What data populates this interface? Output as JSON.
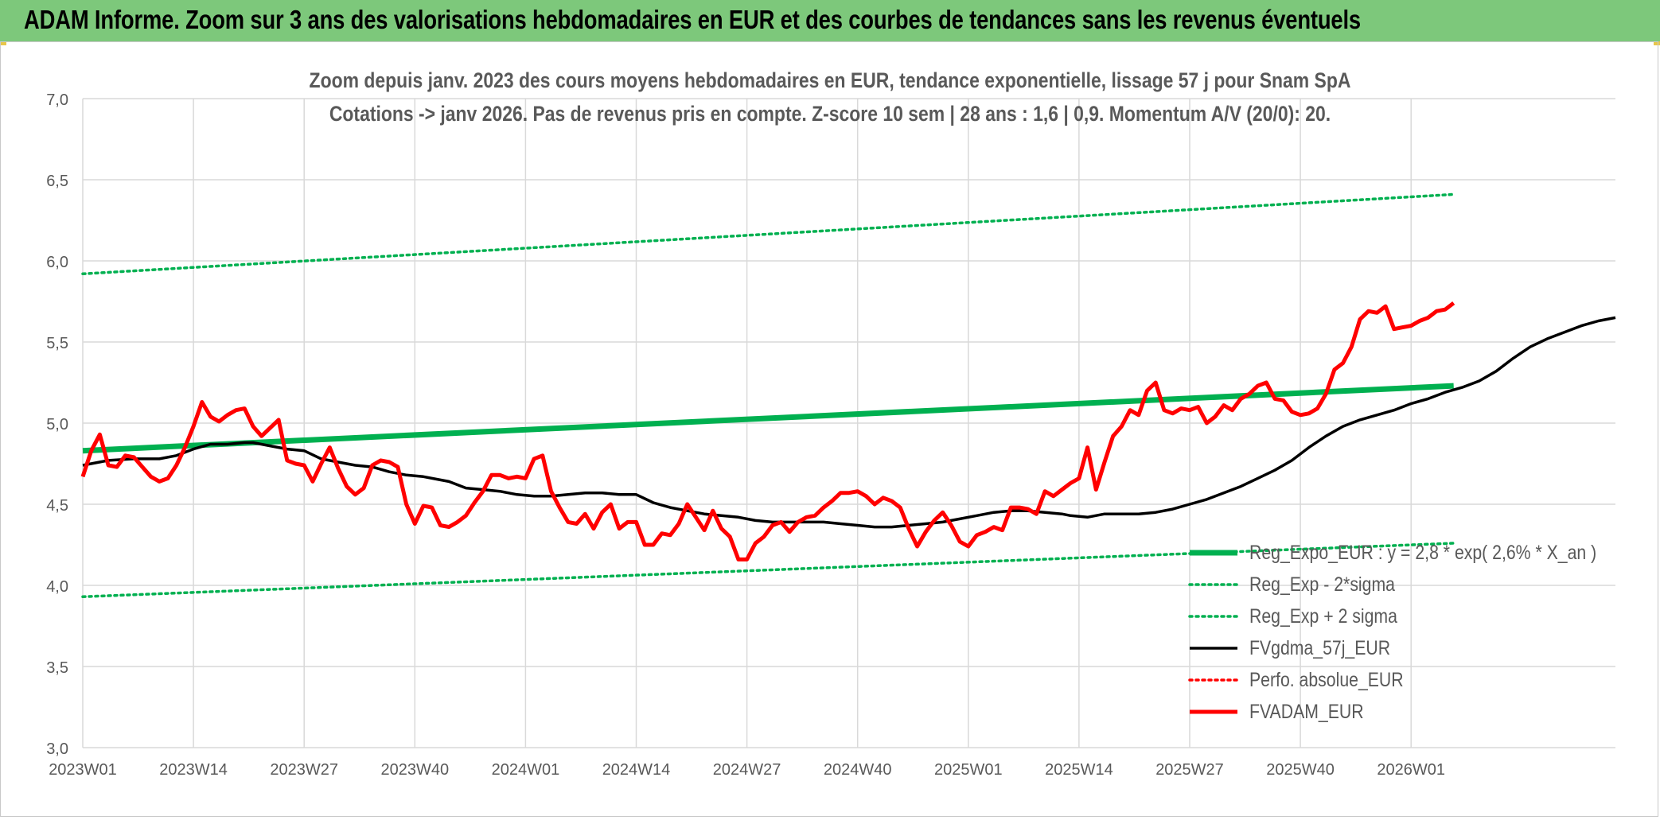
{
  "page": {
    "title": "ADAM Informe. Zoom sur 3 ans des valorisations hebdomadaires en EUR et des courbes de tendances sans les revenus éventuels"
  },
  "chart_data": {
    "type": "line",
    "title": "Zoom depuis janv. 2023 des cours moyens hebdomadaires en EUR, tendance exponentielle, lissage 57 j pour Snam SpA",
    "subtitle": "Cotations -> janv 2026. Pas de revenus pris en compte. Z-score 10 sem | 28 ans : 1,6 | 0,9. Momentum A/V (20/0): 20.",
    "ylim": [
      3.0,
      7.0
    ],
    "y_ticks": [
      "3,0",
      "3,5",
      "4,0",
      "4,5",
      "5,0",
      "5,5",
      "6,0",
      "6,5",
      "7,0"
    ],
    "x_ticks": [
      "2023W01",
      "2023W14",
      "2023W27",
      "2023W40",
      "2024W01",
      "2024W14",
      "2024W27",
      "2024W40",
      "2025W01",
      "2025W14",
      "2025W27",
      "2025W40",
      "2026W01"
    ],
    "x_week_range": [
      0,
      161
    ],
    "grid": true,
    "legend_position": "bottom-right",
    "series": [
      {
        "name": "Reg_Expo_EUR : y = 2,8 * exp( 2,6% * X_an )",
        "color": "#00b050",
        "style": "solid-thick",
        "points": [
          [
            0,
            4.83
          ],
          [
            161,
            5.23
          ]
        ]
      },
      {
        "name": "Reg_Exp - 2*sigma",
        "color": "#00b050",
        "style": "dotted",
        "points": [
          [
            0,
            3.93
          ],
          [
            161,
            4.26
          ]
        ]
      },
      {
        "name": "Reg_Exp + 2 sigma",
        "color": "#00b050",
        "style": "dotted",
        "points": [
          [
            0,
            5.92
          ],
          [
            161,
            6.41
          ]
        ]
      },
      {
        "name": "FVgdma_57j_EUR",
        "color": "#000000",
        "style": "solid",
        "points": [
          [
            0,
            4.74
          ],
          [
            3,
            4.77
          ],
          [
            6,
            4.78
          ],
          [
            9,
            4.78
          ],
          [
            11,
            4.8
          ],
          [
            13,
            4.84
          ],
          [
            15,
            4.87
          ],
          [
            17,
            4.87
          ],
          [
            19,
            4.88
          ],
          [
            20,
            4.88
          ],
          [
            22,
            4.86
          ],
          [
            24,
            4.84
          ],
          [
            26,
            4.83
          ],
          [
            28,
            4.78
          ],
          [
            30,
            4.76
          ],
          [
            32,
            4.74
          ],
          [
            34,
            4.73
          ],
          [
            36,
            4.7
          ],
          [
            38,
            4.68
          ],
          [
            40,
            4.67
          ],
          [
            42,
            4.65
          ],
          [
            43,
            4.64
          ],
          [
            45,
            4.6
          ],
          [
            47,
            4.59
          ],
          [
            49,
            4.58
          ],
          [
            51,
            4.56
          ],
          [
            53,
            4.55
          ],
          [
            55,
            4.55
          ],
          [
            57,
            4.56
          ],
          [
            59,
            4.57
          ],
          [
            61,
            4.57
          ],
          [
            63,
            4.56
          ],
          [
            65,
            4.56
          ],
          [
            67,
            4.51
          ],
          [
            69,
            4.48
          ],
          [
            71,
            4.46
          ],
          [
            73,
            4.44
          ],
          [
            75,
            4.43
          ],
          [
            77,
            4.42
          ],
          [
            79,
            4.4
          ],
          [
            81,
            4.39
          ],
          [
            83,
            4.39
          ],
          [
            85,
            4.39
          ],
          [
            87,
            4.39
          ],
          [
            89,
            4.38
          ],
          [
            91,
            4.37
          ],
          [
            93,
            4.36
          ],
          [
            95,
            4.36
          ],
          [
            97,
            4.37
          ],
          [
            99,
            4.38
          ],
          [
            101,
            4.39
          ],
          [
            103,
            4.41
          ],
          [
            105,
            4.43
          ],
          [
            107,
            4.45
          ],
          [
            109,
            4.46
          ],
          [
            111,
            4.46
          ],
          [
            113,
            4.45
          ],
          [
            115,
            4.44
          ],
          [
            116,
            4.43
          ],
          [
            118,
            4.42
          ],
          [
            120,
            4.44
          ],
          [
            122,
            4.44
          ],
          [
            124,
            4.44
          ],
          [
            126,
            4.45
          ],
          [
            128,
            4.47
          ],
          [
            130,
            4.5
          ],
          [
            132,
            4.53
          ],
          [
            134,
            4.57
          ],
          [
            136,
            4.61
          ],
          [
            138,
            4.66
          ],
          [
            140,
            4.71
          ],
          [
            142,
            4.77
          ],
          [
            144,
            4.85
          ],
          [
            146,
            4.92
          ],
          [
            148,
            4.98
          ],
          [
            150,
            5.02
          ],
          [
            152,
            5.05
          ],
          [
            154,
            5.08
          ],
          [
            156,
            5.12
          ],
          [
            158,
            5.15
          ],
          [
            160,
            5.19
          ],
          [
            162,
            5.22
          ],
          [
            164,
            5.26
          ],
          [
            166,
            5.32
          ],
          [
            168,
            5.4
          ],
          [
            170,
            5.47
          ],
          [
            172,
            5.52
          ],
          [
            174,
            5.56
          ],
          [
            176,
            5.6
          ],
          [
            178,
            5.63
          ],
          [
            180,
            5.65
          ]
        ]
      },
      {
        "name": "Perfo. absolue_EUR",
        "color": "#ff0000",
        "style": "dotted",
        "points": []
      },
      {
        "name": "FVADAM_EUR",
        "color": "#ff0000",
        "style": "solid-thick",
        "points": [
          [
            0,
            4.67
          ],
          [
            1,
            4.83
          ],
          [
            2,
            4.93
          ],
          [
            3,
            4.74
          ],
          [
            4,
            4.73
          ],
          [
            5,
            4.8
          ],
          [
            6,
            4.79
          ],
          [
            7,
            4.73
          ],
          [
            8,
            4.67
          ],
          [
            9,
            4.64
          ],
          [
            10,
            4.66
          ],
          [
            11,
            4.74
          ],
          [
            12,
            4.85
          ],
          [
            13,
            4.98
          ],
          [
            14,
            5.13
          ],
          [
            15,
            5.04
          ],
          [
            16,
            5.01
          ],
          [
            17,
            5.05
          ],
          [
            18,
            5.08
          ],
          [
            19,
            5.09
          ],
          [
            20,
            4.98
          ],
          [
            21,
            4.92
          ],
          [
            22,
            4.97
          ],
          [
            23,
            5.02
          ],
          [
            24,
            4.77
          ],
          [
            25,
            4.75
          ],
          [
            26,
            4.74
          ],
          [
            27,
            4.64
          ],
          [
            28,
            4.75
          ],
          [
            29,
            4.85
          ],
          [
            30,
            4.72
          ],
          [
            31,
            4.61
          ],
          [
            32,
            4.56
          ],
          [
            33,
            4.6
          ],
          [
            34,
            4.74
          ],
          [
            35,
            4.77
          ],
          [
            36,
            4.76
          ],
          [
            37,
            4.73
          ],
          [
            38,
            4.5
          ],
          [
            39,
            4.38
          ],
          [
            40,
            4.49
          ],
          [
            41,
            4.48
          ],
          [
            42,
            4.37
          ],
          [
            43,
            4.36
          ],
          [
            44,
            4.39
          ],
          [
            45,
            4.43
          ],
          [
            46,
            4.51
          ],
          [
            47,
            4.58
          ],
          [
            48,
            4.68
          ],
          [
            49,
            4.68
          ],
          [
            50,
            4.66
          ],
          [
            51,
            4.67
          ],
          [
            52,
            4.66
          ],
          [
            53,
            4.78
          ],
          [
            54,
            4.8
          ],
          [
            55,
            4.58
          ],
          [
            56,
            4.48
          ],
          [
            57,
            4.39
          ],
          [
            58,
            4.38
          ],
          [
            59,
            4.44
          ],
          [
            60,
            4.35
          ],
          [
            61,
            4.45
          ],
          [
            62,
            4.5
          ],
          [
            63,
            4.35
          ],
          [
            64,
            4.39
          ],
          [
            65,
            4.39
          ],
          [
            66,
            4.25
          ],
          [
            67,
            4.25
          ],
          [
            68,
            4.32
          ],
          [
            69,
            4.31
          ],
          [
            70,
            4.38
          ],
          [
            71,
            4.5
          ],
          [
            72,
            4.42
          ],
          [
            73,
            4.34
          ],
          [
            74,
            4.46
          ],
          [
            75,
            4.35
          ],
          [
            76,
            4.3
          ],
          [
            77,
            4.16
          ],
          [
            78,
            4.16
          ],
          [
            79,
            4.26
          ],
          [
            80,
            4.3
          ],
          [
            81,
            4.37
          ],
          [
            82,
            4.39
          ],
          [
            83,
            4.33
          ],
          [
            84,
            4.39
          ],
          [
            85,
            4.42
          ],
          [
            86,
            4.43
          ],
          [
            87,
            4.48
          ],
          [
            88,
            4.52
          ],
          [
            89,
            4.57
          ],
          [
            90,
            4.57
          ],
          [
            91,
            4.58
          ],
          [
            92,
            4.55
          ],
          [
            93,
            4.5
          ],
          [
            94,
            4.54
          ],
          [
            95,
            4.52
          ],
          [
            96,
            4.48
          ],
          [
            97,
            4.35
          ],
          [
            98,
            4.24
          ],
          [
            99,
            4.33
          ],
          [
            100,
            4.4
          ],
          [
            101,
            4.45
          ],
          [
            102,
            4.37
          ],
          [
            103,
            4.27
          ],
          [
            104,
            4.24
          ],
          [
            105,
            4.31
          ],
          [
            106,
            4.33
          ],
          [
            107,
            4.36
          ],
          [
            108,
            4.34
          ],
          [
            109,
            4.48
          ],
          [
            110,
            4.48
          ],
          [
            111,
            4.47
          ],
          [
            112,
            4.44
          ],
          [
            113,
            4.58
          ],
          [
            114,
            4.55
          ],
          [
            115,
            4.59
          ],
          [
            116,
            4.63
          ],
          [
            117,
            4.66
          ],
          [
            118,
            4.85
          ],
          [
            119,
            4.59
          ],
          [
            120,
            4.76
          ],
          [
            121,
            4.92
          ],
          [
            122,
            4.98
          ],
          [
            123,
            5.08
          ],
          [
            124,
            5.05
          ],
          [
            125,
            5.2
          ],
          [
            126,
            5.25
          ],
          [
            127,
            5.08
          ],
          [
            128,
            5.06
          ],
          [
            129,
            5.09
          ],
          [
            130,
            5.08
          ],
          [
            131,
            5.1
          ],
          [
            132,
            5.0
          ],
          [
            133,
            5.04
          ],
          [
            134,
            5.11
          ],
          [
            135,
            5.08
          ],
          [
            136,
            5.15
          ],
          [
            137,
            5.18
          ],
          [
            138,
            5.23
          ],
          [
            139,
            5.25
          ],
          [
            140,
            5.15
          ],
          [
            141,
            5.14
          ],
          [
            142,
            5.07
          ],
          [
            143,
            5.05
          ],
          [
            144,
            5.06
          ],
          [
            145,
            5.09
          ],
          [
            146,
            5.18
          ],
          [
            147,
            5.33
          ],
          [
            148,
            5.37
          ],
          [
            149,
            5.47
          ],
          [
            150,
            5.64
          ],
          [
            151,
            5.69
          ],
          [
            152,
            5.68
          ],
          [
            153,
            5.72
          ],
          [
            154,
            5.58
          ],
          [
            155,
            5.59
          ],
          [
            156,
            5.6
          ],
          [
            157,
            5.63
          ],
          [
            158,
            5.65
          ],
          [
            159,
            5.69
          ],
          [
            160,
            5.7
          ],
          [
            161,
            5.74
          ]
        ]
      }
    ]
  }
}
